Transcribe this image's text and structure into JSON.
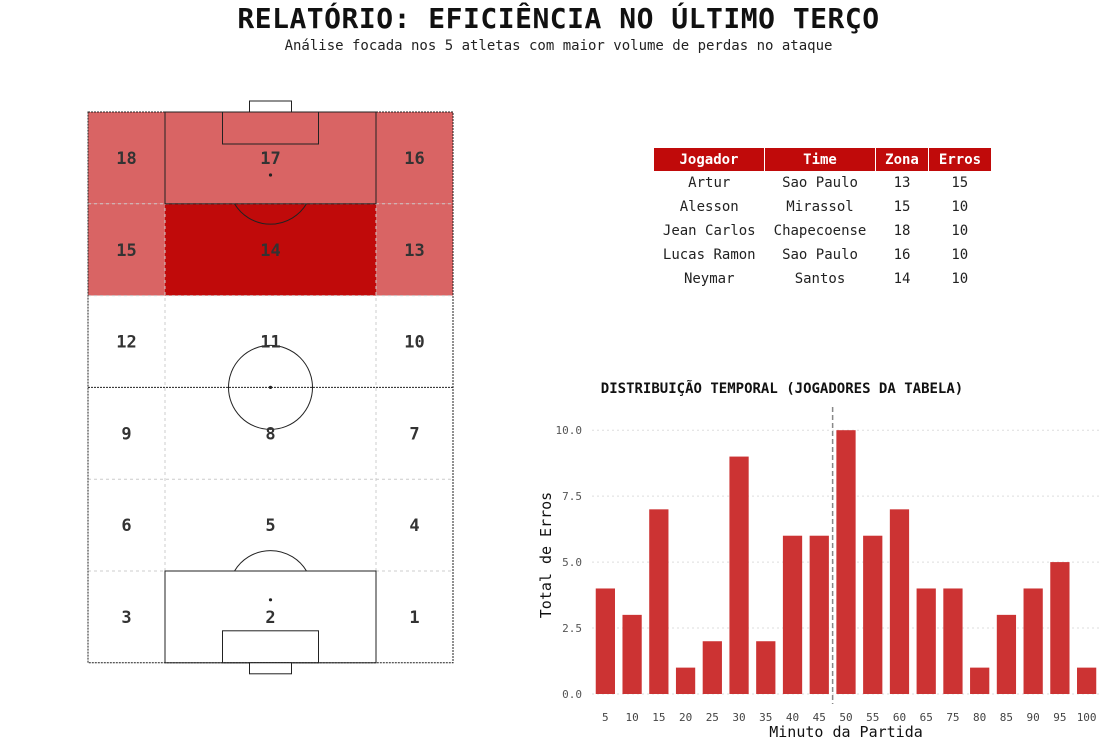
{
  "header": {
    "title": "RELATÓRIO: EFICIÊNCIA NO ÚLTIMO TERÇO",
    "subtitle": "Análise focada nos 5 atletas com maior volume de perdas no ataque"
  },
  "pitch": {
    "zones": [
      {
        "id": "18",
        "highlight": "light"
      },
      {
        "id": "17",
        "highlight": "light"
      },
      {
        "id": "16",
        "highlight": "light"
      },
      {
        "id": "15",
        "highlight": "light"
      },
      {
        "id": "14",
        "highlight": "strong"
      },
      {
        "id": "13",
        "highlight": "light"
      },
      {
        "id": "12",
        "highlight": "none"
      },
      {
        "id": "11",
        "highlight": "none"
      },
      {
        "id": "10",
        "highlight": "none"
      },
      {
        "id": "9",
        "highlight": "none"
      },
      {
        "id": "8",
        "highlight": "none"
      },
      {
        "id": "7",
        "highlight": "none"
      },
      {
        "id": "6",
        "highlight": "none"
      },
      {
        "id": "5",
        "highlight": "none"
      },
      {
        "id": "4",
        "highlight": "none"
      },
      {
        "id": "3",
        "highlight": "none"
      },
      {
        "id": "2",
        "highlight": "none"
      },
      {
        "id": "1",
        "highlight": "none"
      }
    ],
    "colors": {
      "strong": "#c00a0a",
      "light": "#d96464",
      "line": "#222222",
      "grid": "#cccccc"
    }
  },
  "table": {
    "headers": [
      "Jogador",
      "Time",
      "Zona",
      "Erros"
    ],
    "rows": [
      [
        "Artur",
        "Sao Paulo",
        "13",
        "15"
      ],
      [
        "Alesson",
        "Mirassol",
        "15",
        "10"
      ],
      [
        "Jean Carlos",
        "Chapecoense",
        "18",
        "10"
      ],
      [
        "Lucas Ramon",
        "Sao Paulo",
        "16",
        "10"
      ],
      [
        "Neymar",
        "Santos",
        "14",
        "10"
      ]
    ],
    "header_color": "#c00a0a"
  },
  "chart_data": {
    "type": "bar",
    "title": "DISTRIBUIÇÃO TEMPORAL (JOGADORES DA TABELA)",
    "xlabel": "Minuto da Partida",
    "ylabel": "Total de Erros",
    "categories": [
      "5",
      "10",
      "15",
      "20",
      "25",
      "30",
      "35",
      "40",
      "45",
      "50",
      "55",
      "60",
      "65",
      "75",
      "80",
      "85",
      "90",
      "95",
      "100"
    ],
    "values": [
      4,
      3,
      7,
      1,
      2,
      9,
      2,
      6,
      6,
      10,
      6,
      7,
      4,
      4,
      1,
      3,
      4,
      5,
      1
    ],
    "ylim": [
      0,
      10.5
    ],
    "yticks": [
      "0.0",
      "2.5",
      "5.0",
      "7.5",
      "10.0"
    ],
    "vline_after_category": "45",
    "bar_color": "#cc3333",
    "grid": true
  }
}
